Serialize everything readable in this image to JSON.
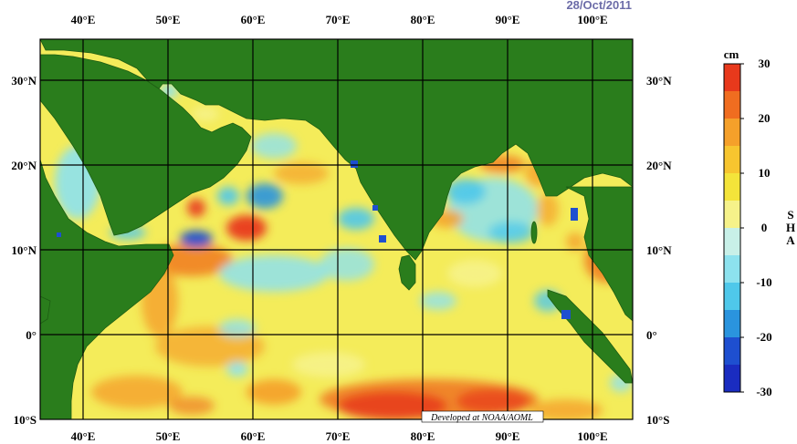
{
  "date": "28/Oct/2011",
  "credit": "Developed at NOAA/AOML",
  "colorbar": {
    "unit": "cm",
    "title": "SHA",
    "ticks": [
      "30",
      "20",
      "10",
      "0",
      "-10",
      "-20",
      "-30"
    ],
    "stops": [
      "#e8391c",
      "#f06d20",
      "#f5a02a",
      "#f7c52f",
      "#f4e43a",
      "#f6f28a",
      "#c8f0e8",
      "#8de2ee",
      "#4fc8ea",
      "#2a94de",
      "#1e4fd0",
      "#1a2cc0"
    ]
  },
  "axes": {
    "lon_labels": [
      "40°E",
      "50°E",
      "60°E",
      "70°E",
      "80°E",
      "90°E",
      "100°E"
    ],
    "lat_labels_left": [
      "30°N",
      "20°N",
      "10°N",
      "0°",
      "10°S"
    ],
    "lat_labels_right": [
      "30°N",
      "20°N",
      "10°N",
      "0°",
      "10°S"
    ]
  },
  "colors": {
    "land": "#2a7d1c",
    "ocean_base": "#f4ec5a",
    "grid": "#000000"
  }
}
